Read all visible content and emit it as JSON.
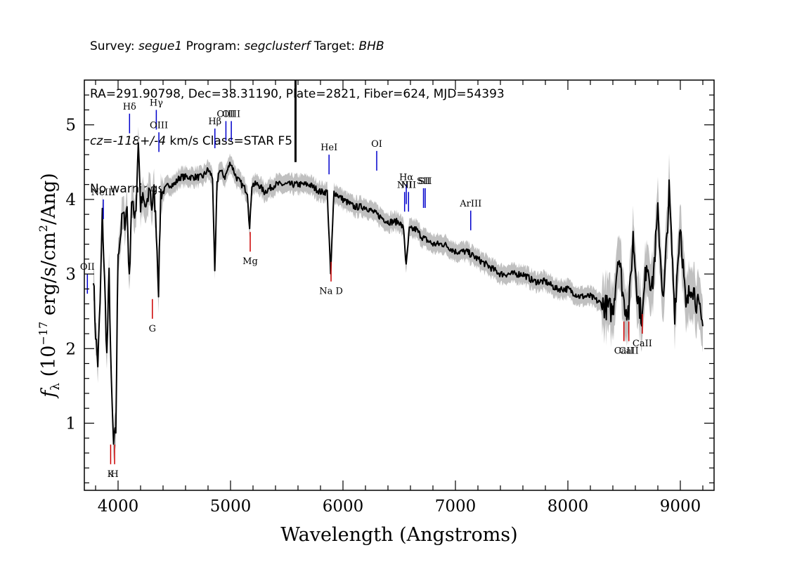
{
  "header": {
    "line1": {
      "survey_label": "Survey: ",
      "survey": "segue1",
      "program_label": " Program: ",
      "program": "segclusterf",
      "target_label": " Target: ",
      "target": "BHB"
    },
    "line2": "RA=291.90798, Dec=38.31190, Plate=2821, Fiber=624, MJD=54393",
    "line3": {
      "cz": "cz=-118+/-4",
      "rest": " km/s Class=STAR F5"
    },
    "line4": "No warnings."
  },
  "chart_data": {
    "type": "line",
    "xlabel": "Wavelength (Angstroms)",
    "ylabel": "f_λ (10^-17 erg/s/cm^2/Ang)",
    "xlim": [
      3700,
      9300
    ],
    "ylim": [
      0.1,
      5.6
    ],
    "x_ticks": [
      4000,
      5000,
      6000,
      7000,
      8000,
      9000
    ],
    "y_ticks": [
      1,
      2,
      3,
      4,
      5
    ],
    "series": [
      {
        "x": [
          3780,
          3800,
          3820,
          3840,
          3860,
          3880,
          3900,
          3920,
          3940,
          3960,
          3980,
          4000,
          4020,
          4040,
          4060,
          4080,
          4100,
          4120,
          4140,
          4160,
          4180,
          4200,
          4220,
          4240,
          4260,
          4280,
          4300,
          4320,
          4340,
          4360,
          4380,
          4400,
          4450,
          4500,
          4550,
          4600,
          4650,
          4700,
          4750,
          4800,
          4840,
          4860,
          4880,
          4900,
          4950,
          5000,
          5050,
          5100,
          5150,
          5170,
          5190,
          5250,
          5300,
          5400,
          5500,
          5600,
          5700,
          5800,
          5860,
          5890,
          5920,
          6000,
          6100,
          6200,
          6300,
          6400,
          6500,
          6540,
          6562,
          6590,
          6650,
          6700,
          6800,
          6900,
          7000,
          7100,
          7200,
          7300,
          7400,
          7500,
          7600,
          7700,
          7800,
          7900,
          8000,
          8100,
          8200,
          8300,
          8400,
          8450,
          8500,
          8542,
          8580,
          8620,
          8662,
          8700,
          8750,
          8800,
          8850,
          8900,
          8950,
          9000,
          9050,
          9100,
          9150,
          9200
        ],
        "values": [
          3.0,
          2.2,
          1.8,
          2.6,
          3.8,
          2.9,
          1.9,
          3.0,
          1.5,
          0.7,
          0.9,
          3.3,
          3.5,
          3.8,
          3.7,
          3.9,
          2.9,
          4.0,
          3.8,
          3.9,
          4.8,
          3.9,
          4.0,
          3.9,
          3.9,
          4.2,
          3.9,
          4.1,
          3.6,
          2.8,
          4.1,
          4.1,
          4.2,
          4.2,
          4.3,
          4.3,
          4.3,
          4.3,
          4.3,
          4.4,
          4.3,
          3.0,
          4.2,
          4.4,
          4.3,
          4.5,
          4.3,
          4.2,
          4.1,
          3.6,
          4.2,
          4.2,
          4.1,
          4.2,
          4.2,
          4.2,
          4.2,
          4.1,
          4.1,
          3.0,
          4.1,
          4.0,
          3.9,
          3.9,
          3.8,
          3.7,
          3.7,
          3.6,
          3.1,
          3.6,
          3.6,
          3.5,
          3.4,
          3.4,
          3.3,
          3.3,
          3.2,
          3.1,
          3.0,
          3.0,
          3.0,
          2.9,
          2.9,
          2.8,
          2.8,
          2.7,
          2.7,
          2.6,
          2.5,
          3.3,
          2.6,
          2.5,
          3.5,
          2.7,
          2.4,
          3.2,
          2.8,
          3.8,
          2.6,
          4.1,
          2.5,
          3.7,
          2.5,
          2.9,
          2.6,
          2.3
        ]
      }
    ],
    "spike": {
      "x": 5578,
      "y_from": 4.5,
      "y_to": 5.6
    },
    "emission_lines": [
      {
        "label": "NeIII",
        "x": 3869,
        "y": 4.0
      },
      {
        "label": "OII",
        "x": 3727,
        "y": 3.0
      },
      {
        "label": "Hδ",
        "x": 4102,
        "y": 5.15
      },
      {
        "label": "Hγ",
        "x": 4340,
        "y": 5.2
      },
      {
        "label": "OIII",
        "x": 4363,
        "y": 4.9
      },
      {
        "label": "Hβ",
        "x": 4861,
        "y": 4.95
      },
      {
        "label": "OIII",
        "x": 4959,
        "y": 5.05
      },
      {
        "label": "OIII",
        "x": 5007,
        "y": 5.05
      },
      {
        "label": "HeI",
        "x": 5876,
        "y": 4.6
      },
      {
        "label": "OI",
        "x": 6300,
        "y": 4.65
      },
      {
        "label": "NII",
        "x": 6548,
        "y": 4.1
      },
      {
        "label": "Hα",
        "x": 6563,
        "y": 4.2
      },
      {
        "label": "NII",
        "x": 6583,
        "y": 4.1
      },
      {
        "label": "SII",
        "x": 6716,
        "y": 4.15
      },
      {
        "label": "SII",
        "x": 6731,
        "y": 4.15
      },
      {
        "label": "ArIII",
        "x": 7136,
        "y": 3.85
      }
    ],
    "absorption_lines": [
      {
        "label": "K",
        "x": 3934,
        "y": 0.45
      },
      {
        "label": "H",
        "x": 3969,
        "y": 0.45
      },
      {
        "label": "G",
        "x": 4305,
        "y": 2.4
      },
      {
        "label": "Mg",
        "x": 5175,
        "y": 3.3
      },
      {
        "label": "Na D",
        "x": 5894,
        "y": 2.9
      },
      {
        "label": "CaII",
        "x": 8498,
        "y": 2.1
      },
      {
        "label": "CaII",
        "x": 8542,
        "y": 2.1
      },
      {
        "label": "CaII",
        "x": 8662,
        "y": 2.2
      }
    ]
  },
  "colors": {
    "spectrum": "#000000",
    "error_band": "#c0c0c0",
    "emission": "#0000cc",
    "absorption": "#cc0000"
  }
}
